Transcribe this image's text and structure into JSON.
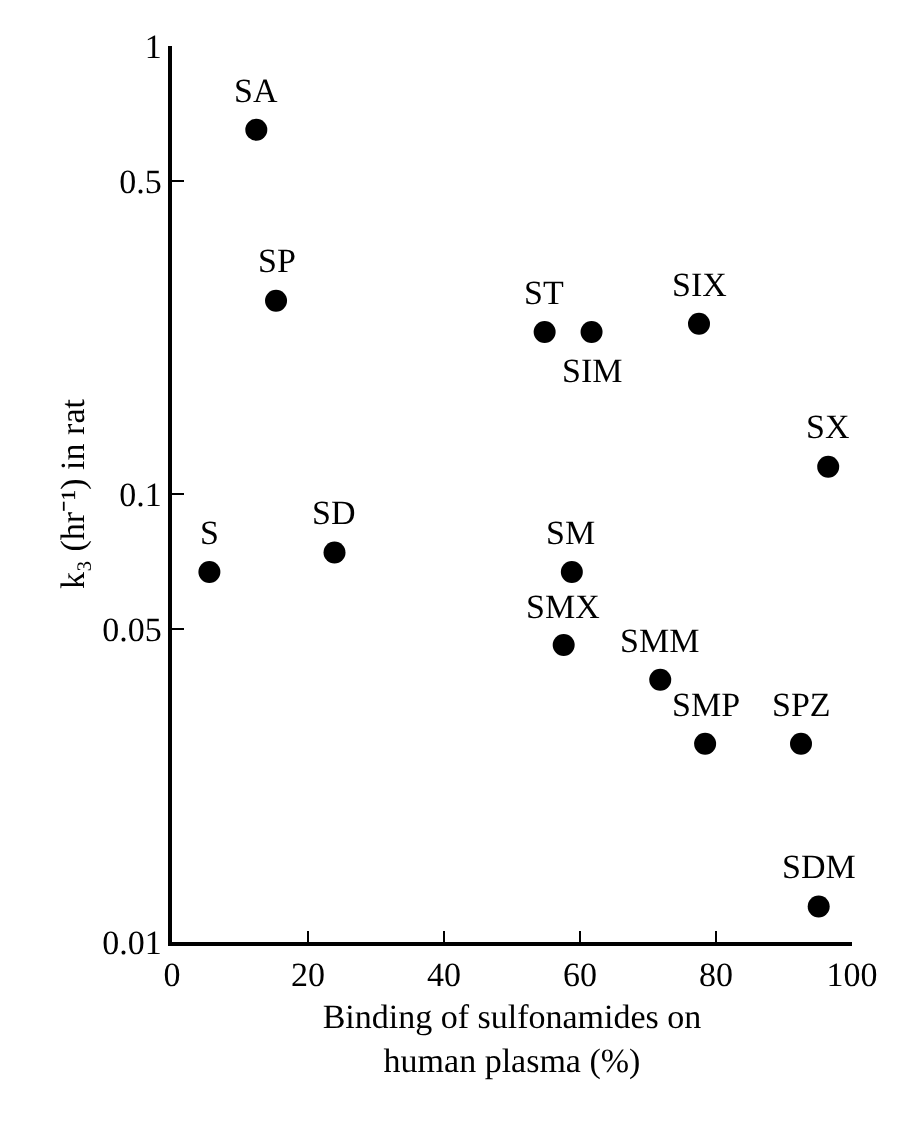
{
  "chart_data": {
    "type": "scatter",
    "x": [
      12.4,
      15.3,
      54.8,
      61.7,
      77.5,
      96.5,
      5.5,
      23.9,
      58.8,
      57.6,
      71.8,
      78.4,
      92.5,
      95.1
    ],
    "series": [
      {
        "color": "#000000",
        "values": [
          0.65,
          0.27,
          0.23,
          0.23,
          0.24,
          0.115,
          0.067,
          0.074,
          0.067,
          0.046,
          0.0385,
          0.0277,
          0.0277,
          0.012
        ]
      }
    ],
    "annotations": [
      {
        "text": "SA",
        "x": 12.4,
        "y": 0.65
      },
      {
        "text": "SP",
        "x": 15.3,
        "y": 0.27
      },
      {
        "text": "ST",
        "x": 54.8,
        "y": 0.23
      },
      {
        "text": "SIM",
        "x": 61.7,
        "y": 0.23
      },
      {
        "text": "SIX",
        "x": 77.5,
        "y": 0.24
      },
      {
        "text": "SX",
        "x": 96.5,
        "y": 0.115
      },
      {
        "text": "S",
        "x": 5.5,
        "y": 0.067
      },
      {
        "text": "SD",
        "x": 23.9,
        "y": 0.074
      },
      {
        "text": "SM",
        "x": 58.8,
        "y": 0.067
      },
      {
        "text": "SMX",
        "x": 57.6,
        "y": 0.046
      },
      {
        "text": "SMM",
        "x": 71.8,
        "y": 0.0385
      },
      {
        "text": "SMP",
        "x": 78.4,
        "y": 0.0277
      },
      {
        "text": "SPZ",
        "x": 92.5,
        "y": 0.0277
      },
      {
        "text": "SDM",
        "x": 95.1,
        "y": 0.012
      }
    ],
    "xlabel": "Binding of sulfonamides on\nhuman plasma (%)",
    "ylabel": "k₃ (hr⁻¹) in rat",
    "xlim": [
      0,
      100
    ],
    "xticks": [
      0,
      20,
      40,
      60,
      80,
      100
    ],
    "ylim": [
      0.01,
      1
    ],
    "yticks": [
      0.01,
      0.05,
      0.1,
      0.5,
      1
    ],
    "log": "y",
    "marker": "circle"
  }
}
